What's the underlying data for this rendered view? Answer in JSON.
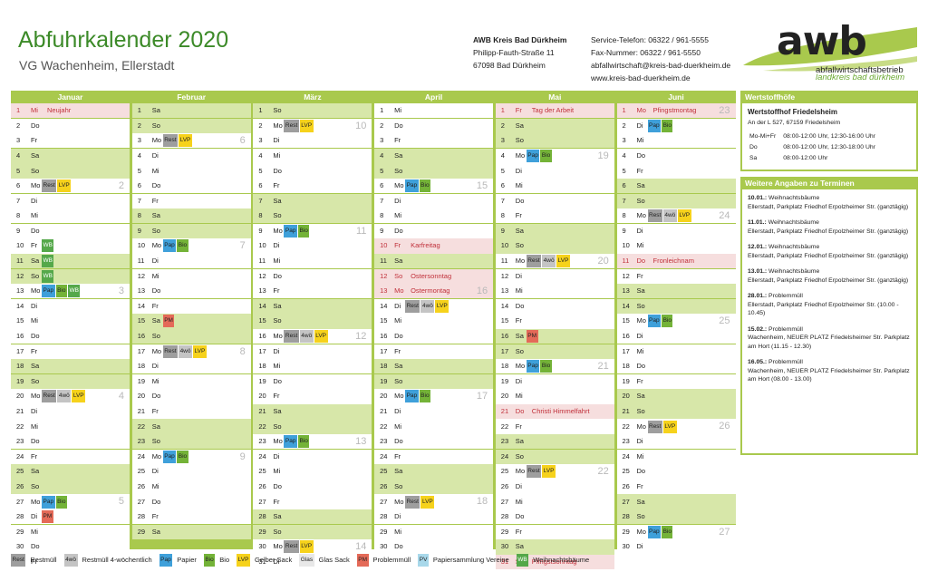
{
  "header": {
    "title": "Abfuhrkalender 2020",
    "subtitle": "VG Wachenheim, Ellerstadt"
  },
  "address": {
    "name": "AWB Kreis Bad Dürkheim",
    "street": "Philipp-Fauth-Straße 11",
    "city": "67098 Bad Dürkheim"
  },
  "contact": {
    "phone": "Service-Telefon: 06322 / 961-5555",
    "fax": "Fax-Nummer: 06322 / 961-5550",
    "email": "abfallwirtschaft@kreis-bad-duerkheim.de",
    "web": "www.kreis-bad-duerkheim.de"
  },
  "logo": {
    "text": "awb",
    "line1": "abfallwirtschaftsbetrieb",
    "line2": "landkreis bad dürkheim"
  },
  "colors": {
    "accent": "#a9c94d",
    "title": "#3c8a28",
    "weekend": "#d7e7a9",
    "holiday": "#f6dede"
  },
  "badge_labels": {
    "rest": "Rest",
    "w4": "4wö",
    "pap": "Pap",
    "bio": "Bio",
    "lvp": "LVP",
    "glas": "Glas",
    "pm": "PM",
    "pv": "PV",
    "wb": "WB"
  },
  "months": [
    {
      "name": "Januar",
      "days": [
        {
          "d": "1",
          "w": "Mi",
          "t": "h",
          "h": "Neujahr"
        },
        {
          "d": "2",
          "w": "Do"
        },
        {
          "d": "3",
          "w": "Fr"
        },
        {
          "d": "4",
          "w": "Sa",
          "t": "w"
        },
        {
          "d": "5",
          "w": "So",
          "t": "w"
        },
        {
          "d": "6",
          "w": "Mo",
          "b": [
            "rest",
            "lvp"
          ],
          "k": "2"
        },
        {
          "d": "7",
          "w": "Di"
        },
        {
          "d": "8",
          "w": "Mi"
        },
        {
          "d": "9",
          "w": "Do"
        },
        {
          "d": "10",
          "w": "Fr",
          "b": [
            "wb"
          ]
        },
        {
          "d": "11",
          "w": "Sa",
          "t": "w",
          "b": [
            "wb"
          ]
        },
        {
          "d": "12",
          "w": "So",
          "t": "w",
          "b": [
            "wb"
          ]
        },
        {
          "d": "13",
          "w": "Mo",
          "b": [
            "pap",
            "bio",
            "wb"
          ],
          "k": "3"
        },
        {
          "d": "14",
          "w": "Di"
        },
        {
          "d": "15",
          "w": "Mi"
        },
        {
          "d": "16",
          "w": "Do"
        },
        {
          "d": "17",
          "w": "Fr"
        },
        {
          "d": "18",
          "w": "Sa",
          "t": "w"
        },
        {
          "d": "19",
          "w": "So",
          "t": "w"
        },
        {
          "d": "20",
          "w": "Mo",
          "b": [
            "rest",
            "w4",
            "lvp"
          ],
          "k": "4"
        },
        {
          "d": "21",
          "w": "Di"
        },
        {
          "d": "22",
          "w": "Mi"
        },
        {
          "d": "23",
          "w": "Do"
        },
        {
          "d": "24",
          "w": "Fr"
        },
        {
          "d": "25",
          "w": "Sa",
          "t": "w"
        },
        {
          "d": "26",
          "w": "So",
          "t": "w"
        },
        {
          "d": "27",
          "w": "Mo",
          "b": [
            "pap",
            "bio"
          ],
          "k": "5"
        },
        {
          "d": "28",
          "w": "Di",
          "b": [
            "pm"
          ]
        },
        {
          "d": "29",
          "w": "Mi"
        },
        {
          "d": "30",
          "w": "Do"
        },
        {
          "d": "31",
          "w": "Fr"
        }
      ]
    },
    {
      "name": "Februar",
      "days": [
        {
          "d": "1",
          "w": "Sa",
          "t": "w"
        },
        {
          "d": "2",
          "w": "So",
          "t": "w"
        },
        {
          "d": "3",
          "w": "Mo",
          "b": [
            "rest",
            "lvp"
          ],
          "k": "6"
        },
        {
          "d": "4",
          "w": "Di"
        },
        {
          "d": "5",
          "w": "Mi"
        },
        {
          "d": "6",
          "w": "Do"
        },
        {
          "d": "7",
          "w": "Fr"
        },
        {
          "d": "8",
          "w": "Sa",
          "t": "w"
        },
        {
          "d": "9",
          "w": "So",
          "t": "w"
        },
        {
          "d": "10",
          "w": "Mo",
          "b": [
            "pap",
            "bio"
          ],
          "k": "7"
        },
        {
          "d": "11",
          "w": "Di"
        },
        {
          "d": "12",
          "w": "Mi"
        },
        {
          "d": "13",
          "w": "Do"
        },
        {
          "d": "14",
          "w": "Fr"
        },
        {
          "d": "15",
          "w": "Sa",
          "t": "w",
          "b": [
            "pm"
          ]
        },
        {
          "d": "16",
          "w": "So",
          "t": "w"
        },
        {
          "d": "17",
          "w": "Mo",
          "b": [
            "rest",
            "w4",
            "lvp"
          ],
          "k": "8"
        },
        {
          "d": "18",
          "w": "Di"
        },
        {
          "d": "19",
          "w": "Mi"
        },
        {
          "d": "20",
          "w": "Do"
        },
        {
          "d": "21",
          "w": "Fr"
        },
        {
          "d": "22",
          "w": "Sa",
          "t": "w"
        },
        {
          "d": "23",
          "w": "So",
          "t": "w"
        },
        {
          "d": "24",
          "w": "Mo",
          "b": [
            "pap",
            "bio"
          ],
          "k": "9"
        },
        {
          "d": "25",
          "w": "Di"
        },
        {
          "d": "26",
          "w": "Mi"
        },
        {
          "d": "27",
          "w": "Do"
        },
        {
          "d": "28",
          "w": "Fr"
        },
        {
          "d": "29",
          "w": "Sa",
          "t": "w"
        }
      ]
    },
    {
      "name": "März",
      "days": [
        {
          "d": "1",
          "w": "So",
          "t": "w"
        },
        {
          "d": "2",
          "w": "Mo",
          "b": [
            "rest",
            "lvp"
          ],
          "k": "10"
        },
        {
          "d": "3",
          "w": "Di"
        },
        {
          "d": "4",
          "w": "Mi"
        },
        {
          "d": "5",
          "w": "Do"
        },
        {
          "d": "6",
          "w": "Fr"
        },
        {
          "d": "7",
          "w": "Sa",
          "t": "w"
        },
        {
          "d": "8",
          "w": "So",
          "t": "w"
        },
        {
          "d": "9",
          "w": "Mo",
          "b": [
            "pap",
            "bio"
          ],
          "k": "11"
        },
        {
          "d": "10",
          "w": "Di"
        },
        {
          "d": "11",
          "w": "Mi"
        },
        {
          "d": "12",
          "w": "Do"
        },
        {
          "d": "13",
          "w": "Fr"
        },
        {
          "d": "14",
          "w": "Sa",
          "t": "w"
        },
        {
          "d": "15",
          "w": "So",
          "t": "w"
        },
        {
          "d": "16",
          "w": "Mo",
          "b": [
            "rest",
            "w4",
            "lvp"
          ],
          "k": "12"
        },
        {
          "d": "17",
          "w": "Di"
        },
        {
          "d": "18",
          "w": "Mi"
        },
        {
          "d": "19",
          "w": "Do"
        },
        {
          "d": "20",
          "w": "Fr"
        },
        {
          "d": "21",
          "w": "Sa",
          "t": "w"
        },
        {
          "d": "22",
          "w": "So",
          "t": "w"
        },
        {
          "d": "23",
          "w": "Mo",
          "b": [
            "pap",
            "bio"
          ],
          "k": "13"
        },
        {
          "d": "24",
          "w": "Di"
        },
        {
          "d": "25",
          "w": "Mi"
        },
        {
          "d": "26",
          "w": "Do"
        },
        {
          "d": "27",
          "w": "Fr"
        },
        {
          "d": "28",
          "w": "Sa",
          "t": "w"
        },
        {
          "d": "29",
          "w": "So",
          "t": "w"
        },
        {
          "d": "30",
          "w": "Mo",
          "b": [
            "rest",
            "lvp"
          ],
          "k": "14"
        },
        {
          "d": "31",
          "w": "Di"
        }
      ]
    },
    {
      "name": "April",
      "days": [
        {
          "d": "1",
          "w": "Mi"
        },
        {
          "d": "2",
          "w": "Do"
        },
        {
          "d": "3",
          "w": "Fr"
        },
        {
          "d": "4",
          "w": "Sa",
          "t": "w"
        },
        {
          "d": "5",
          "w": "So",
          "t": "w"
        },
        {
          "d": "6",
          "w": "Mo",
          "b": [
            "pap",
            "bio"
          ],
          "k": "15"
        },
        {
          "d": "7",
          "w": "Di"
        },
        {
          "d": "8",
          "w": "Mi"
        },
        {
          "d": "9",
          "w": "Do"
        },
        {
          "d": "10",
          "w": "Fr",
          "t": "h",
          "h": "Karfreitag"
        },
        {
          "d": "11",
          "w": "Sa",
          "t": "w"
        },
        {
          "d": "12",
          "w": "So",
          "t": "h",
          "h": "Ostersonntag"
        },
        {
          "d": "13",
          "w": "Mo",
          "t": "h",
          "h": "Ostermontag",
          "k": "16"
        },
        {
          "d": "14",
          "w": "Di",
          "b": [
            "rest",
            "w4",
            "lvp"
          ]
        },
        {
          "d": "15",
          "w": "Mi"
        },
        {
          "d": "16",
          "w": "Do"
        },
        {
          "d": "17",
          "w": "Fr"
        },
        {
          "d": "18",
          "w": "Sa",
          "t": "w"
        },
        {
          "d": "19",
          "w": "So",
          "t": "w"
        },
        {
          "d": "20",
          "w": "Mo",
          "b": [
            "pap",
            "bio"
          ],
          "k": "17"
        },
        {
          "d": "21",
          "w": "Di"
        },
        {
          "d": "22",
          "w": "Mi"
        },
        {
          "d": "23",
          "w": "Do"
        },
        {
          "d": "24",
          "w": "Fr"
        },
        {
          "d": "25",
          "w": "Sa",
          "t": "w"
        },
        {
          "d": "26",
          "w": "So",
          "t": "w"
        },
        {
          "d": "27",
          "w": "Mo",
          "b": [
            "rest",
            "lvp"
          ],
          "k": "18"
        },
        {
          "d": "28",
          "w": "Di"
        },
        {
          "d": "29",
          "w": "Mi"
        },
        {
          "d": "30",
          "w": "Do"
        }
      ]
    },
    {
      "name": "Mai",
      "days": [
        {
          "d": "1",
          "w": "Fr",
          "t": "h",
          "h": "Tag der Arbeit"
        },
        {
          "d": "2",
          "w": "Sa",
          "t": "w"
        },
        {
          "d": "3",
          "w": "So",
          "t": "w"
        },
        {
          "d": "4",
          "w": "Mo",
          "b": [
            "pap",
            "bio"
          ],
          "k": "19"
        },
        {
          "d": "5",
          "w": "Di"
        },
        {
          "d": "6",
          "w": "Mi"
        },
        {
          "d": "7",
          "w": "Do"
        },
        {
          "d": "8",
          "w": "Fr"
        },
        {
          "d": "9",
          "w": "Sa",
          "t": "w"
        },
        {
          "d": "10",
          "w": "So",
          "t": "w"
        },
        {
          "d": "11",
          "w": "Mo",
          "b": [
            "rest",
            "w4",
            "lvp"
          ],
          "k": "20"
        },
        {
          "d": "12",
          "w": "Di"
        },
        {
          "d": "13",
          "w": "Mi"
        },
        {
          "d": "14",
          "w": "Do"
        },
        {
          "d": "15",
          "w": "Fr"
        },
        {
          "d": "16",
          "w": "Sa",
          "t": "w",
          "b": [
            "pm"
          ]
        },
        {
          "d": "17",
          "w": "So",
          "t": "w"
        },
        {
          "d": "18",
          "w": "Mo",
          "b": [
            "pap",
            "bio"
          ],
          "k": "21"
        },
        {
          "d": "19",
          "w": "Di"
        },
        {
          "d": "20",
          "w": "Mi"
        },
        {
          "d": "21",
          "w": "Do",
          "t": "h",
          "h": "Christi Himmelfahrt"
        },
        {
          "d": "22",
          "w": "Fr"
        },
        {
          "d": "23",
          "w": "Sa",
          "t": "w"
        },
        {
          "d": "24",
          "w": "So",
          "t": "w"
        },
        {
          "d": "25",
          "w": "Mo",
          "b": [
            "rest",
            "lvp"
          ],
          "k": "22"
        },
        {
          "d": "26",
          "w": "Di"
        },
        {
          "d": "27",
          "w": "Mi"
        },
        {
          "d": "28",
          "w": "Do"
        },
        {
          "d": "29",
          "w": "Fr"
        },
        {
          "d": "30",
          "w": "Sa",
          "t": "w"
        },
        {
          "d": "31",
          "w": "So",
          "t": "h",
          "h": "Pfingstsonntag"
        }
      ]
    },
    {
      "name": "Juni",
      "days": [
        {
          "d": "1",
          "w": "Mo",
          "t": "h",
          "h": "Pfingstmontag",
          "k": "23"
        },
        {
          "d": "2",
          "w": "Di",
          "b": [
            "pap",
            "bio"
          ]
        },
        {
          "d": "3",
          "w": "Mi"
        },
        {
          "d": "4",
          "w": "Do"
        },
        {
          "d": "5",
          "w": "Fr"
        },
        {
          "d": "6",
          "w": "Sa",
          "t": "w"
        },
        {
          "d": "7",
          "w": "So",
          "t": "w"
        },
        {
          "d": "8",
          "w": "Mo",
          "b": [
            "rest",
            "w4",
            "lvp"
          ],
          "k": "24"
        },
        {
          "d": "9",
          "w": "Di"
        },
        {
          "d": "10",
          "w": "Mi"
        },
        {
          "d": "11",
          "w": "Do",
          "t": "h",
          "h": "Fronleichnam"
        },
        {
          "d": "12",
          "w": "Fr"
        },
        {
          "d": "13",
          "w": "Sa",
          "t": "w"
        },
        {
          "d": "14",
          "w": "So",
          "t": "w"
        },
        {
          "d": "15",
          "w": "Mo",
          "b": [
            "pap",
            "bio"
          ],
          "k": "25"
        },
        {
          "d": "16",
          "w": "Di"
        },
        {
          "d": "17",
          "w": "Mi"
        },
        {
          "d": "18",
          "w": "Do"
        },
        {
          "d": "19",
          "w": "Fr"
        },
        {
          "d": "20",
          "w": "Sa",
          "t": "w"
        },
        {
          "d": "21",
          "w": "So",
          "t": "w"
        },
        {
          "d": "22",
          "w": "Mo",
          "b": [
            "rest",
            "lvp"
          ],
          "k": "26"
        },
        {
          "d": "23",
          "w": "Di"
        },
        {
          "d": "24",
          "w": "Mi"
        },
        {
          "d": "25",
          "w": "Do"
        },
        {
          "d": "26",
          "w": "Fr"
        },
        {
          "d": "27",
          "w": "Sa",
          "t": "w"
        },
        {
          "d": "28",
          "w": "So",
          "t": "w"
        },
        {
          "d": "29",
          "w": "Mo",
          "b": [
            "pap",
            "bio"
          ],
          "k": "27"
        },
        {
          "d": "30",
          "w": "Di"
        }
      ]
    }
  ],
  "wertstoffhoefe": {
    "heading": "Wertstoffhöfe",
    "name": "Wertstoffhof Friedelsheim",
    "address": "An der L 527, 67159 Friedelsheim",
    "hours": [
      {
        "days": "Mo-Mi+Fr",
        "time": "08:00-12:00 Uhr, 12:30-16:00 Uhr"
      },
      {
        "days": "Do",
        "time": "08:00-12:00 Uhr, 12:30-18:00 Uhr"
      },
      {
        "days": "Sa",
        "time": "08:00-12:00 Uhr"
      }
    ]
  },
  "termine": {
    "heading": "Weitere Angaben zu Terminen",
    "events": [
      {
        "date": "10.01.:",
        "title": "Weihnachtsbäume",
        "detail": "Ellerstadt, Parkplatz Friedhof Erpolzheimer Str. (ganztägig)"
      },
      {
        "date": "11.01.:",
        "title": "Weihnachtsbäume",
        "detail": "Ellerstadt, Parkplatz Friedhof Erpolzheimer Str. (ganztägig)"
      },
      {
        "date": "12.01.:",
        "title": "Weihnachtsbäume",
        "detail": "Ellerstadt, Parkplatz Friedhof Erpolzheimer Str. (ganztägig)"
      },
      {
        "date": "13.01.:",
        "title": "Weihnachtsbäume",
        "detail": "Ellerstadt, Parkplatz Friedhof Erpolzheimer Str. (ganztägig)"
      },
      {
        "date": "28.01.:",
        "title": "Problemmüll",
        "detail": "Ellerstadt, Parkplatz Friedhof Erpolzheimer Str. (10.00 - 10.45)"
      },
      {
        "date": "15.02.:",
        "title": "Problemmüll",
        "detail": "Wachenheim, NEUER PLATZ Friedelsheimer Str. Parkplatz am Hort (11.15 - 12.30)"
      },
      {
        "date": "16.05.:",
        "title": "Problemmüll",
        "detail": "Wachenheim, NEUER PLATZ Friedelsheimer Str. Parkplatz am Hort (08.00 - 13.00)"
      }
    ]
  },
  "legend": [
    {
      "key": "rest",
      "badge": "Rest",
      "label": "Restmüll"
    },
    {
      "key": "w4",
      "badge": "4wö",
      "label": "Restmüll 4-wöchentlich"
    },
    {
      "key": "pap",
      "badge": "Pap",
      "label": "Papier"
    },
    {
      "key": "bio",
      "badge": "Bio",
      "label": "Bio"
    },
    {
      "key": "lvp",
      "badge": "LVP",
      "label": "Gelber Sack"
    },
    {
      "key": "glas",
      "badge": "Glas",
      "label": "Glas Sack"
    },
    {
      "key": "pm",
      "badge": "PM",
      "label": "Problemmüll"
    },
    {
      "key": "pv",
      "badge": "PV",
      "label": "Papiersammlung Vereine"
    },
    {
      "key": "wb",
      "badge": "WB",
      "label": "Weihnachtsbäume"
    }
  ]
}
